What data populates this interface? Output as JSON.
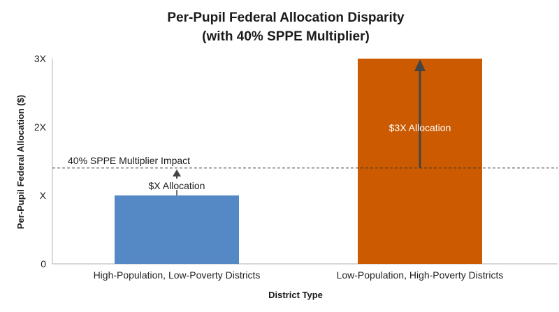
{
  "chart_data": {
    "type": "bar",
    "title_line1": "Per-Pupil Federal Allocation Disparity",
    "title_line2": "(with 40% SPPE Multiplier)",
    "xlabel": "District Type",
    "ylabel": "Per-Pupil Federal Allocation ($)",
    "categories": [
      "High-Population, Low-Poverty Districts",
      "Low-Population, High-Poverty Districts"
    ],
    "values": [
      1,
      3
    ],
    "bar_colors": [
      "#5589c5",
      "#cc5a00"
    ],
    "ylim": [
      0,
      3
    ],
    "yticks": [
      0,
      1,
      2,
      3
    ],
    "ytick_labels": [
      "0",
      "X",
      "2X",
      "3X"
    ],
    "reference_line": {
      "value": 1.4,
      "label": "40% SPPE Multiplier Impact"
    },
    "bar_labels": [
      "$X Allocation",
      "$3X Allocation"
    ],
    "grid": false,
    "legend": "none"
  }
}
